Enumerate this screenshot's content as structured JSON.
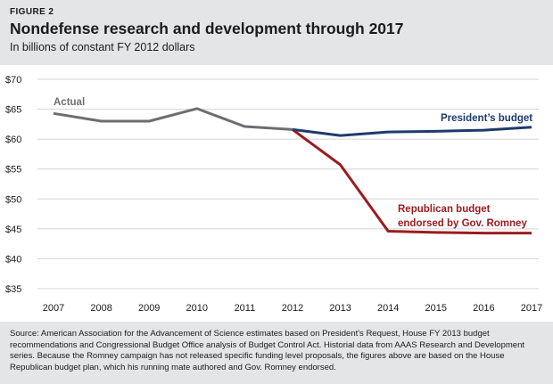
{
  "figure_label": "FIGURE 2",
  "source_note": "Source: American Association for the Advancement of Science estimates based on President's Request, House FY 2013 budget recommendations and Congressional Budget Office analysis of Budget Control Act. Historial data from AAAS Research and Development series. Because the Romney campaign has not released specific funding level proposals, the figures above are based on the House Republican budget plan, which his running mate authored and Gov. Romney endorsed.",
  "colors": {
    "actual": "#6d6e71",
    "president": "#1f3a6e",
    "republican": "#9b1b1f",
    "grid": "#d4d4d4",
    "band": "#e4e5e7"
  },
  "chart_data": {
    "type": "line",
    "title": "Nondefense research and development through 2017",
    "subtitle": "In billions of constant FY 2012 dollars",
    "xlabel": "",
    "ylabel": "",
    "x": [
      2007,
      2008,
      2009,
      2010,
      2011,
      2012,
      2013,
      2014,
      2015,
      2016,
      2017
    ],
    "ylim": [
      35,
      70
    ],
    "yticks": [
      35,
      40,
      45,
      50,
      55,
      60,
      65,
      70
    ],
    "ytick_labels": [
      "$35",
      "$40",
      "$45",
      "$50",
      "$55",
      "$60",
      "$65",
      "$70"
    ],
    "xtick_labels": [
      "2007",
      "2008",
      "2009",
      "2010",
      "2011",
      "2012",
      "2013",
      "2014",
      "2015",
      "2016",
      "2017"
    ],
    "grid": true,
    "series": [
      {
        "name": "Actual",
        "label": "Actual",
        "x": [
          2007,
          2008,
          2009,
          2010,
          2011,
          2012
        ],
        "values": [
          64.3,
          63.0,
          63.0,
          65.1,
          62.1,
          61.6
        ]
      },
      {
        "name": "President's budget",
        "label": "President’s budget",
        "x": [
          2012,
          2013,
          2014,
          2015,
          2016,
          2017
        ],
        "values": [
          61.6,
          60.6,
          61.2,
          61.3,
          61.5,
          62.0
        ]
      },
      {
        "name": "Republican budget endorsed by Gov. Romney",
        "label_lines": [
          "Republican budget",
          "endorsed by Gov. Romney"
        ],
        "x": [
          2012,
          2013,
          2014,
          2015,
          2016,
          2017
        ],
        "values": [
          61.6,
          55.7,
          44.6,
          44.4,
          44.3,
          44.3
        ]
      }
    ]
  }
}
